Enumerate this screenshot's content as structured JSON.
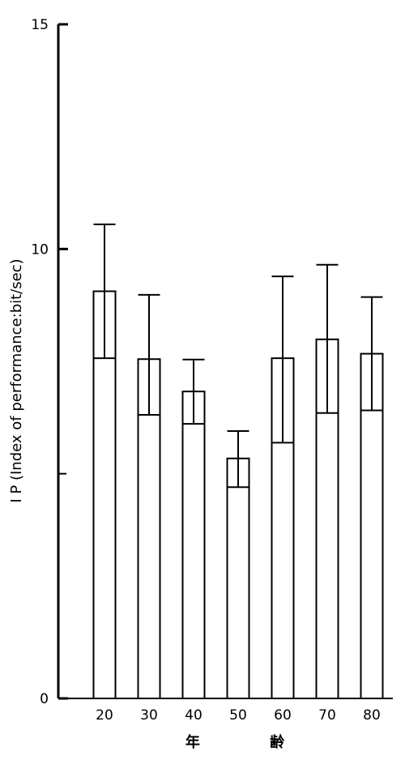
{
  "chart_data": {
    "type": "bar",
    "title": "",
    "categories": [
      "20",
      "30",
      "40",
      "50",
      "60",
      "70",
      "80"
    ],
    "values": [
      9.06,
      7.55,
      6.83,
      5.34,
      7.57,
      7.99,
      7.67
    ],
    "error_upper": [
      10.55,
      8.98,
      7.54,
      5.95,
      9.39,
      9.65,
      8.93
    ],
    "error_lower": [
      7.57,
      6.31,
      6.11,
      4.7,
      5.69,
      6.35,
      6.41
    ],
    "ylabel": "I P (Index of performance:bit/sec)",
    "xlabel": "年 齢",
    "ylim": [
      0,
      15
    ],
    "yticks": [
      0,
      10,
      15
    ],
    "y_minor_ticks": [
      5
    ],
    "grid": false,
    "bar_color": "#ffffff",
    "line_color": "#000000"
  }
}
